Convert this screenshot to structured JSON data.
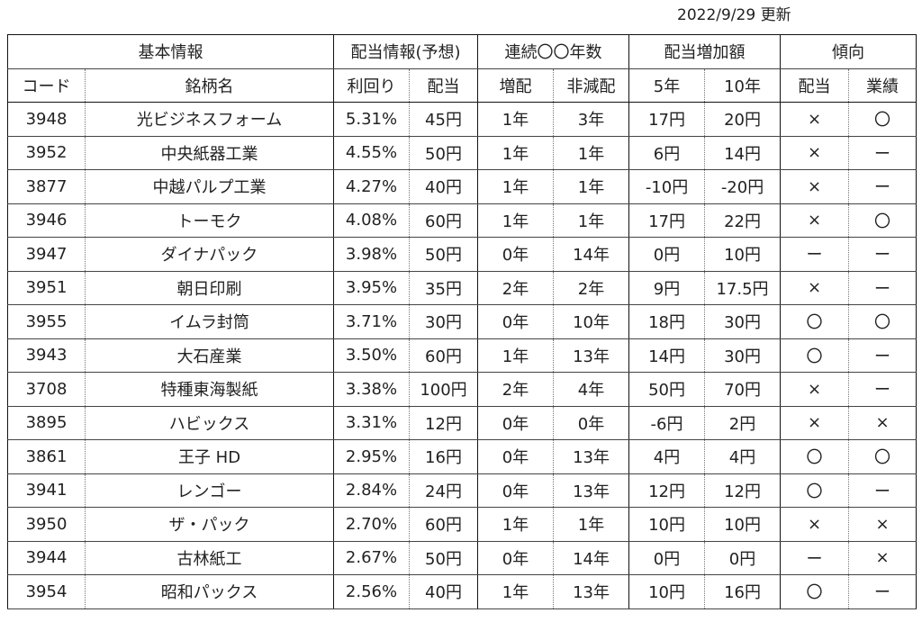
{
  "updated": "2022/9/29 更新",
  "groups": [
    {
      "label": "基本情報",
      "span": 2
    },
    {
      "label": "配当情報(予想)",
      "span": 2
    },
    {
      "label": "連続〇〇年数",
      "span": 2
    },
    {
      "label": "配当増加額",
      "span": 2
    },
    {
      "label": "傾向",
      "span": 2
    }
  ],
  "columns": [
    "コード",
    "銘柄名",
    "利回り",
    "配当",
    "増配",
    "非減配",
    "5年",
    "10年",
    "配当",
    "業績"
  ],
  "rows": [
    [
      "3948",
      "光ビジネスフォーム",
      "5.31%",
      "45円",
      "1年",
      "3年",
      "17円",
      "20円",
      "×",
      "〇"
    ],
    [
      "3952",
      "中央紙器工業",
      "4.55%",
      "50円",
      "1年",
      "1年",
      "6円",
      "14円",
      "×",
      "ー"
    ],
    [
      "3877",
      "中越パルプ工業",
      "4.27%",
      "40円",
      "1年",
      "1年",
      "-10円",
      "-20円",
      "×",
      "ー"
    ],
    [
      "3946",
      "トーモク",
      "4.08%",
      "60円",
      "1年",
      "1年",
      "17円",
      "22円",
      "×",
      "〇"
    ],
    [
      "3947",
      "ダイナパック",
      "3.98%",
      "50円",
      "0年",
      "14年",
      "0円",
      "10円",
      "ー",
      "ー"
    ],
    [
      "3951",
      "朝日印刷",
      "3.95%",
      "35円",
      "2年",
      "2年",
      "9円",
      "17.5円",
      "×",
      "ー"
    ],
    [
      "3955",
      "イムラ封筒",
      "3.71%",
      "30円",
      "0年",
      "10年",
      "18円",
      "30円",
      "〇",
      "〇"
    ],
    [
      "3943",
      "大石産業",
      "3.50%",
      "60円",
      "1年",
      "13年",
      "14円",
      "30円",
      "〇",
      "ー"
    ],
    [
      "3708",
      "特種東海製紙",
      "3.38%",
      "100円",
      "2年",
      "4年",
      "50円",
      "70円",
      "×",
      "ー"
    ],
    [
      "3895",
      "ハビックス",
      "3.31%",
      "12円",
      "0年",
      "0年",
      "-6円",
      "2円",
      "×",
      "×"
    ],
    [
      "3861",
      "王子 HD",
      "2.95%",
      "16円",
      "0年",
      "13年",
      "4円",
      "4円",
      "〇",
      "〇"
    ],
    [
      "3941",
      "レンゴー",
      "2.84%",
      "24円",
      "0年",
      "13年",
      "12円",
      "12円",
      "〇",
      "ー"
    ],
    [
      "3950",
      "ザ・パック",
      "2.70%",
      "60円",
      "1年",
      "1年",
      "10円",
      "10円",
      "×",
      "×"
    ],
    [
      "3944",
      "古林紙工",
      "2.67%",
      "50円",
      "0年",
      "14年",
      "0円",
      "0円",
      "ー",
      "×"
    ],
    [
      "3954",
      "昭和パックス",
      "2.56%",
      "40円",
      "1年",
      "13年",
      "10円",
      "16円",
      "〇",
      "ー"
    ]
  ]
}
